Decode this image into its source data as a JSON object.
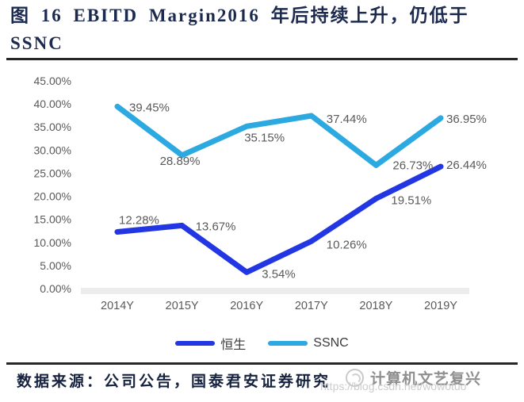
{
  "figure": {
    "title_line1": "图 16 EBITD Margin2016 年后持续上升，仍低于",
    "title_line2": "SSNC",
    "source_note": "数据来源：公司公告，国泰君安证券研究"
  },
  "watermark": {
    "logo_icon": "circle-swirl-logo",
    "brand": "计算机文艺复兴",
    "url": "https://blog.csdn.net/wowotuo"
  },
  "colors": {
    "hengsheng_line": "#2336E4",
    "ssnc_line": "#2BA9E0",
    "axis_text": "#595959",
    "axis_band": "#ECECEC",
    "title_text": "#1b2a4e"
  },
  "chart_data": {
    "type": "line",
    "categories": [
      "2014Y",
      "2015Y",
      "2016Y",
      "2017Y",
      "2018Y",
      "2019Y"
    ],
    "series": [
      {
        "name": "恒生",
        "color": "#2336E4",
        "values": [
          12.28,
          13.67,
          3.54,
          10.26,
          19.51,
          26.44
        ],
        "labels": [
          "12.28%",
          "13.67%",
          "3.54%",
          "10.26%",
          "19.51%",
          "26.44%"
        ]
      },
      {
        "name": "SSNC",
        "color": "#2BA9E0",
        "values": [
          39.45,
          28.89,
          35.15,
          37.44,
          26.73,
          36.95
        ],
        "labels": [
          "39.45%",
          "28.89%",
          "35.15%",
          "37.44%",
          "26.73%",
          "36.95%"
        ]
      }
    ],
    "ylim": [
      0,
      45
    ],
    "ytick_step": 5,
    "ytick_labels": [
      "45.00%",
      "40.00%",
      "35.00%",
      "30.00%",
      "25.00%",
      "20.00%",
      "15.00%",
      "10.00%",
      "5.00%",
      "0.00%"
    ],
    "xlabel": "",
    "ylabel": "",
    "grid": false,
    "data_labels": true,
    "legend_position": "bottom"
  }
}
